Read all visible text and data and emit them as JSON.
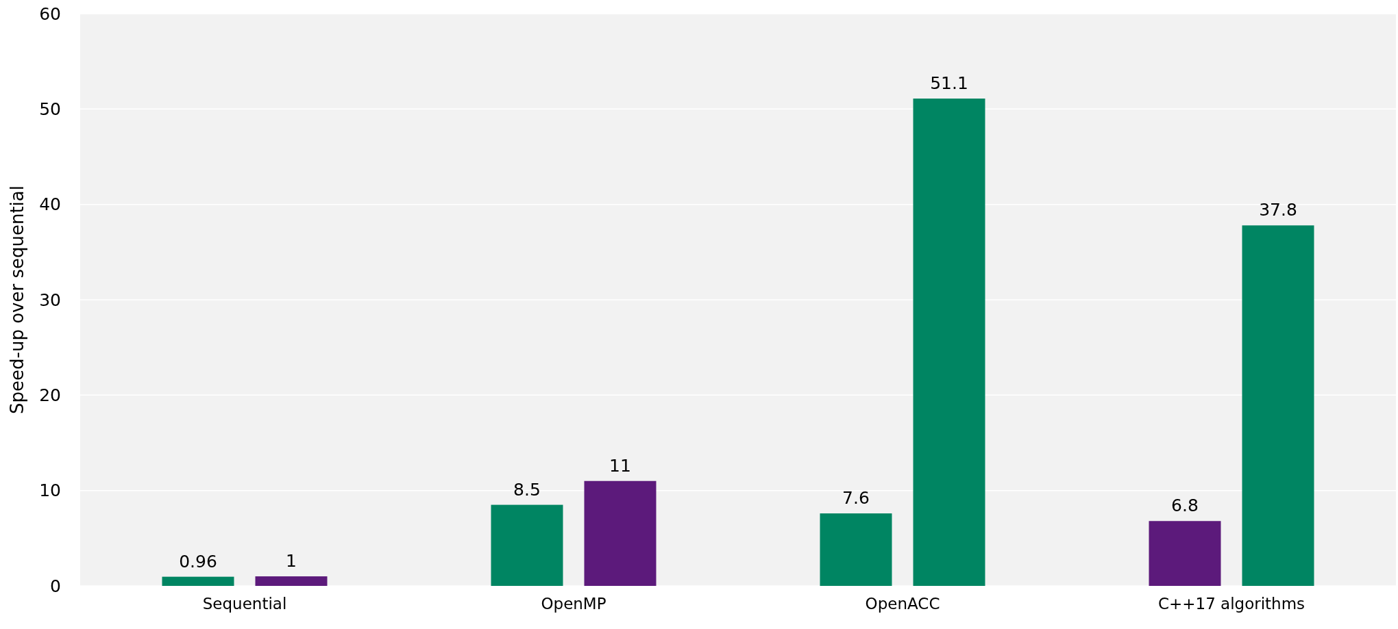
{
  "chart_data": {
    "type": "bar",
    "ylabel": "Speed-up over sequential",
    "categories": [
      "Sequential",
      "OpenMP",
      "OpenACC",
      "C++17 algorithms"
    ],
    "series": [
      {
        "colors": [
          "#008562",
          "#008562",
          "#008562",
          "#5c1a7b"
        ],
        "values": [
          0.96,
          8.5,
          7.6,
          6.8
        ]
      },
      {
        "colors": [
          "#5c1a7b",
          "#5c1a7b",
          "#008562",
          "#008562"
        ],
        "values": [
          1,
          11,
          51.1,
          37.8
        ]
      }
    ],
    "ylim": [
      0,
      60
    ],
    "yticks": [
      0,
      10,
      20,
      30,
      40,
      50,
      60
    ],
    "grid": "y",
    "data_labels": true
  }
}
